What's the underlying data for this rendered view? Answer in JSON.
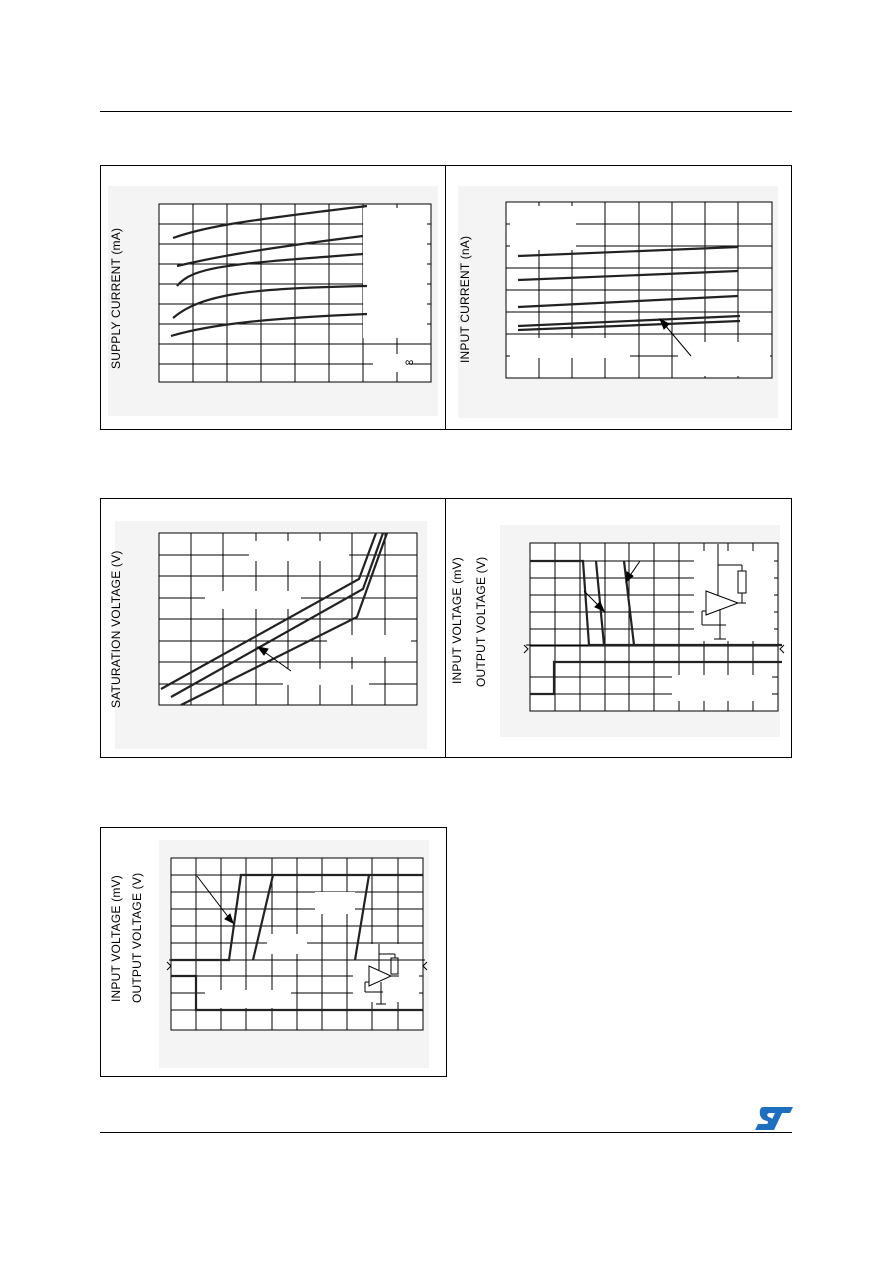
{
  "page": {
    "logo_icon": "st-logo-icon",
    "logo_color": "#1f6fc1"
  },
  "charts": [
    {
      "id": "supply-current",
      "ylabels": [
        "SUPPLY CURRENT (mA)"
      ],
      "annotation": "∞"
    },
    {
      "id": "input-current",
      "ylabels": [
        "INPUT CURRENT (nA)"
      ]
    },
    {
      "id": "saturation-voltage",
      "ylabels": [
        "SATURATION VOLTAGE (V)"
      ]
    },
    {
      "id": "response-time-1",
      "ylabels": [
        "INPUT VOLTAGE (mV)",
        "OUTPUT VOLTAGE (V)"
      ]
    },
    {
      "id": "response-time-2",
      "ylabels": [
        "INPUT VOLTAGE (mV)",
        "OUTPUT VOLTAGE (V)"
      ]
    }
  ]
}
